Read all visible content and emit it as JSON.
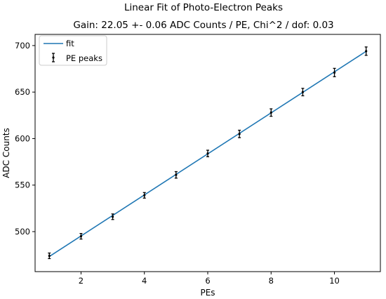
{
  "chart_data": {
    "type": "scatter",
    "title": "Linear Fit of Photo-Electron Peaks",
    "subtitle": "Gain: 22.05 +- 0.06 ADC Counts / PE, Chi^2 / dof: 0.03",
    "xlabel": "PEs",
    "ylabel": "ADC Counts",
    "xlim": [
      0.55,
      11.45
    ],
    "ylim": [
      457,
      712
    ],
    "xticks": [
      2,
      4,
      6,
      8,
      10
    ],
    "yticks": [
      500,
      550,
      600,
      650,
      700
    ],
    "grid": false,
    "legend_position": "top-left",
    "series": [
      {
        "name": "fit",
        "kind": "line",
        "color": "#1f77b4",
        "x": [
          1,
          11
        ],
        "y": [
          473.3,
          693.8
        ]
      },
      {
        "name": "PE peaks",
        "kind": "errorbar",
        "color": "#000000",
        "x": [
          1,
          2,
          3,
          4,
          5,
          6,
          7,
          8,
          9,
          10,
          11
        ],
        "y": [
          474,
          495,
          516,
          539,
          561,
          584,
          605,
          628,
          650,
          671,
          694
        ],
        "yerr": [
          3,
          3,
          3,
          3,
          3.5,
          3.5,
          4,
          4,
          4,
          4.5,
          4.5
        ]
      }
    ]
  }
}
